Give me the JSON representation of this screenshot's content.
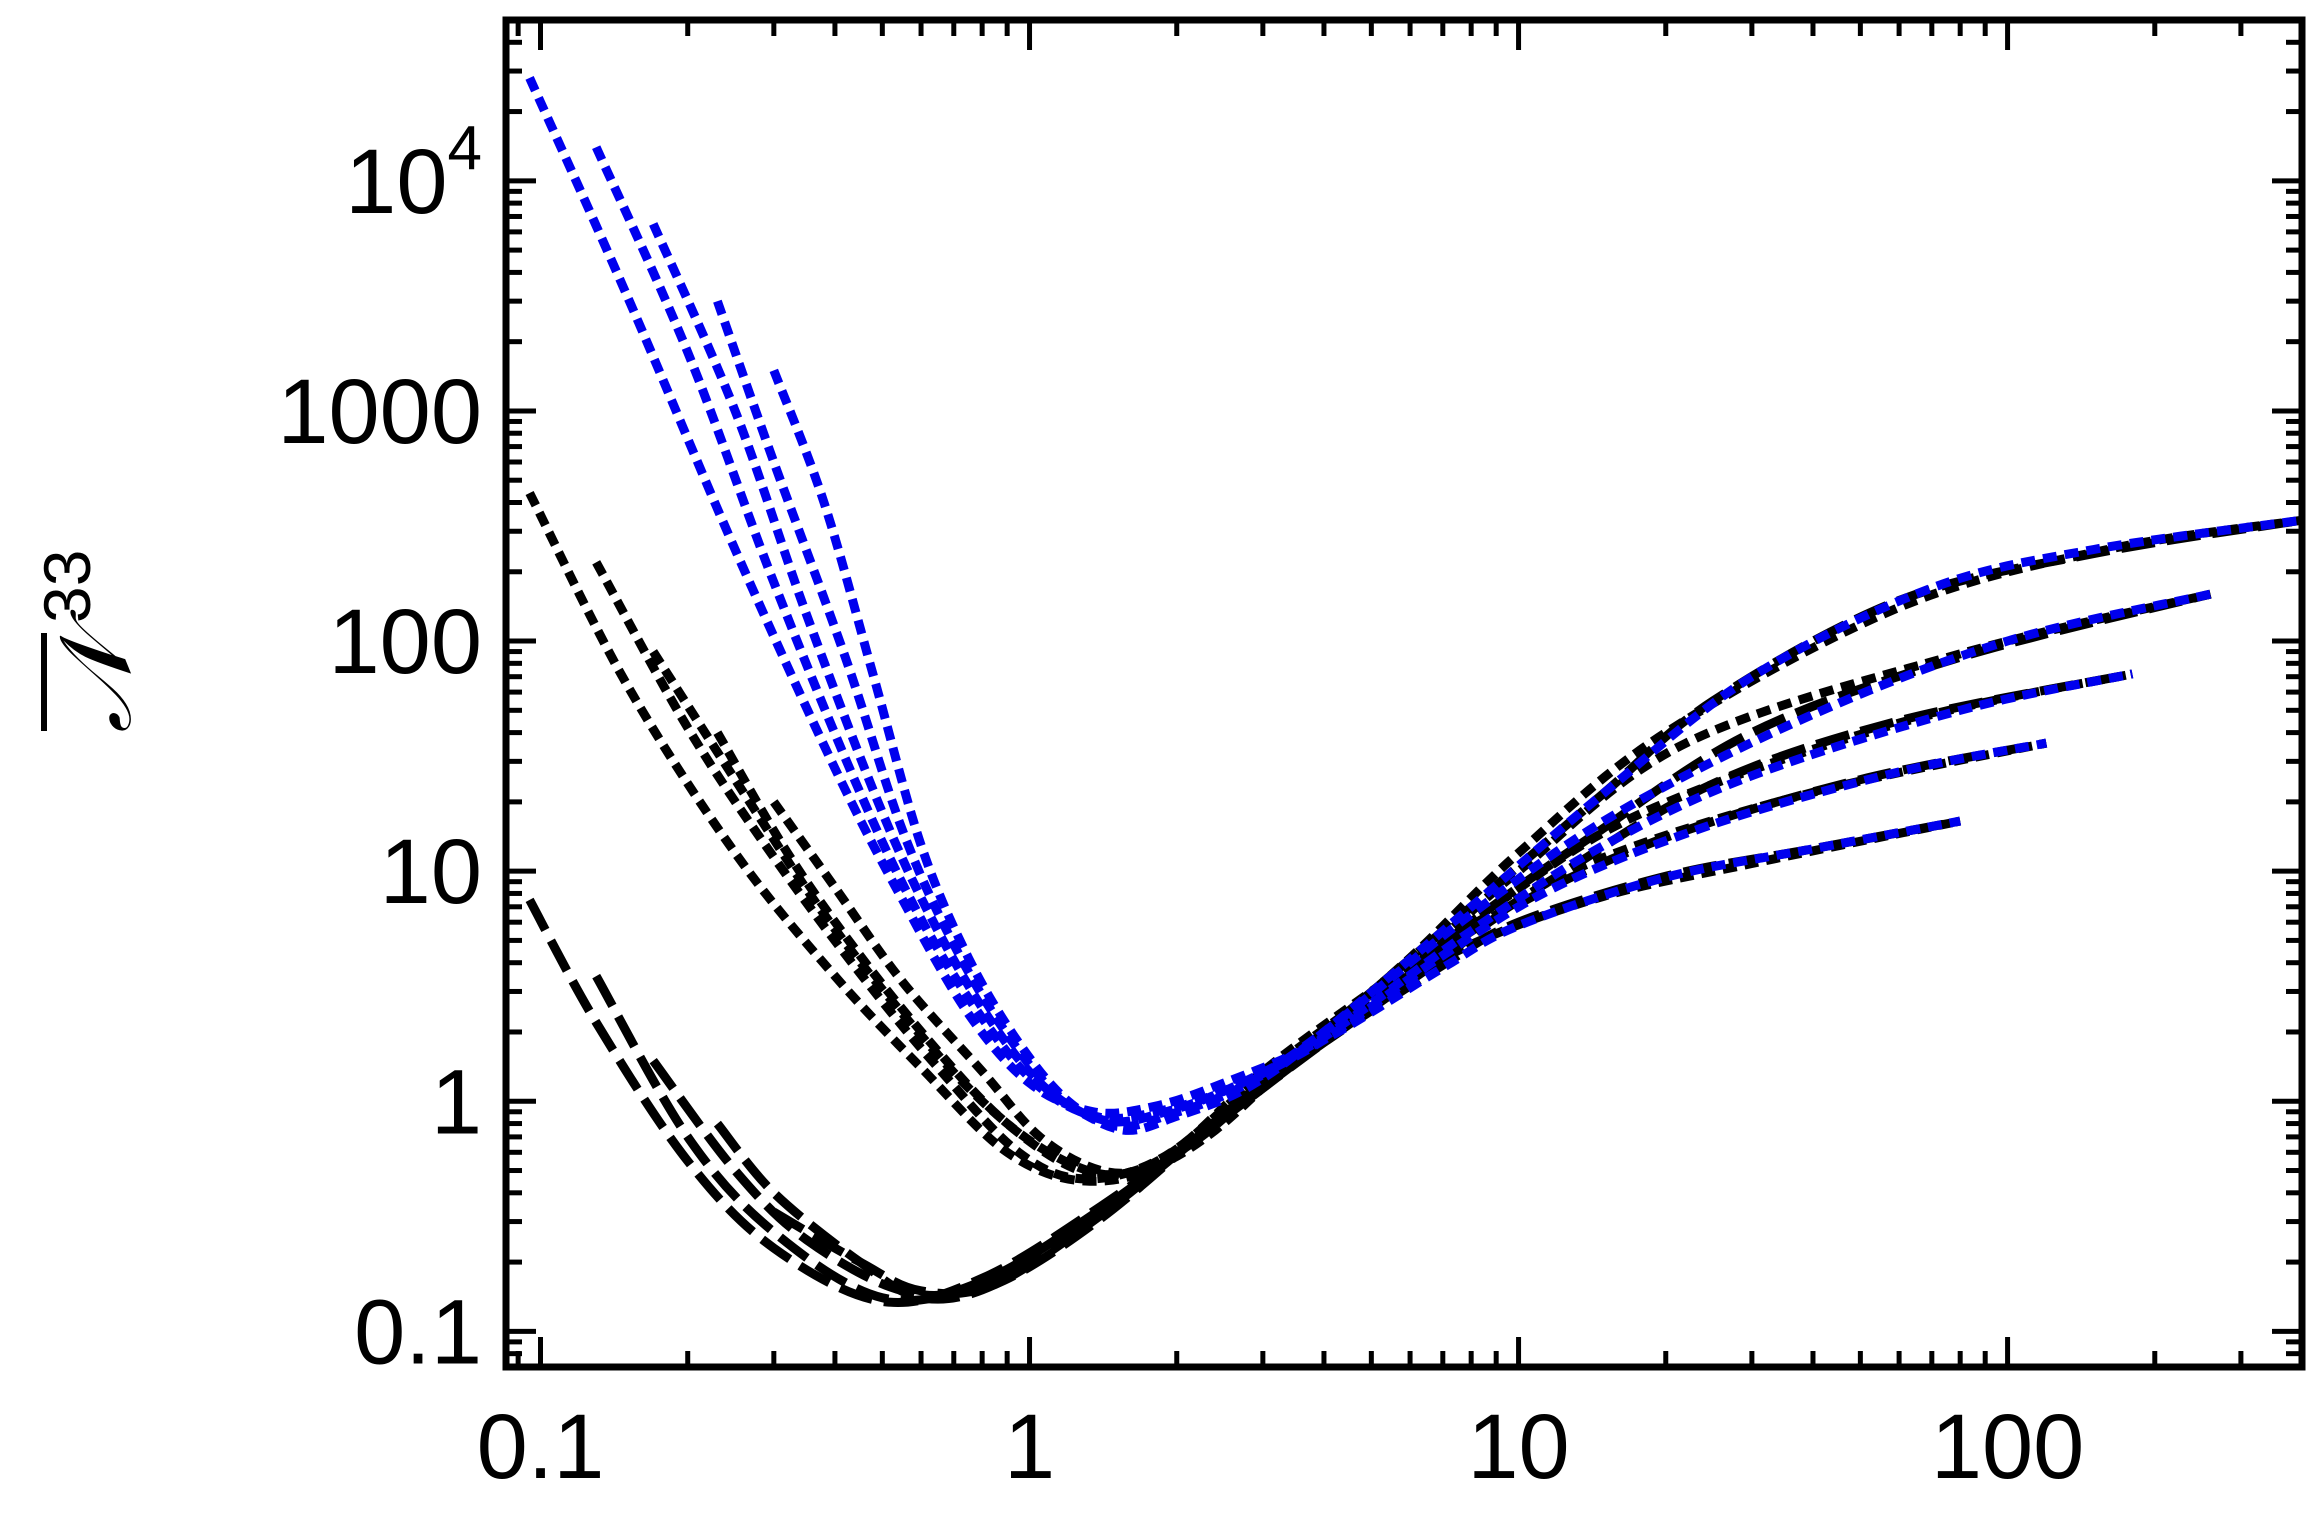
{
  "chart_data": {
    "type": "line",
    "title": "",
    "xlabel": "",
    "ylabel": "𝒩",
    "ylabel_overbar": true,
    "ylabel_superscript": "33",
    "x_scale": "log",
    "y_scale": "log",
    "xlim": [
      0.085,
      400
    ],
    "ylim": [
      0.07,
      50000
    ],
    "x_ticks": [
      {
        "value": 0.1,
        "label": "0.1"
      },
      {
        "value": 1,
        "label": "1"
      },
      {
        "value": 10,
        "label": "10"
      },
      {
        "value": 100,
        "label": "100"
      }
    ],
    "y_ticks": [
      {
        "value": 0.1,
        "label": "0.1"
      },
      {
        "value": 1,
        "label": "1"
      },
      {
        "value": 10,
        "label": "10"
      },
      {
        "value": 100,
        "label": "100"
      },
      {
        "value": 1000,
        "label": "1000"
      },
      {
        "value": 10000,
        "label": "10",
        "sup": "4"
      }
    ],
    "grid": false,
    "legend": "none",
    "colors": {
      "blue": "#0000ee",
      "black": "#000000"
    },
    "series": [
      {
        "color": "#000000",
        "style": "dash",
        "points": [
          [
            0.095,
            7.5
          ],
          [
            0.13,
            2.2
          ],
          [
            0.2,
            0.55
          ],
          [
            0.3,
            0.23
          ],
          [
            0.5,
            0.135
          ],
          [
            0.8,
            0.17
          ],
          [
            1.4,
            0.35
          ],
          [
            2.5,
            0.85
          ],
          [
            4,
            1.8
          ],
          [
            7,
            3.9
          ],
          [
            10,
            6.0
          ],
          [
            20,
            9.5
          ],
          [
            40,
            12.5
          ],
          [
            80,
            16.5
          ]
        ]
      },
      {
        "color": "#000000",
        "style": "dash",
        "points": [
          [
            0.13,
            3.5
          ],
          [
            0.2,
            0.7
          ],
          [
            0.3,
            0.27
          ],
          [
            0.5,
            0.14
          ],
          [
            0.8,
            0.165
          ],
          [
            1.4,
            0.34
          ],
          [
            2.5,
            0.85
          ],
          [
            4,
            1.8
          ],
          [
            7,
            4.2
          ],
          [
            10,
            7.2
          ],
          [
            20,
            14
          ],
          [
            50,
            25
          ],
          [
            120,
            36
          ]
        ]
      },
      {
        "color": "#000000",
        "style": "dash",
        "points": [
          [
            0.17,
            1.5
          ],
          [
            0.25,
            0.5
          ],
          [
            0.35,
            0.25
          ],
          [
            0.55,
            0.15
          ],
          [
            0.8,
            0.16
          ],
          [
            1.4,
            0.33
          ],
          [
            2.5,
            0.86
          ],
          [
            4,
            1.85
          ],
          [
            7,
            4.5
          ],
          [
            12,
            9.5
          ],
          [
            25,
            24
          ],
          [
            60,
            45
          ],
          [
            180,
            72
          ]
        ]
      },
      {
        "color": "#000000",
        "style": "dash",
        "points": [
          [
            0.23,
            0.8
          ],
          [
            0.3,
            0.4
          ],
          [
            0.45,
            0.2
          ],
          [
            0.6,
            0.14
          ],
          [
            0.85,
            0.16
          ],
          [
            1.4,
            0.32
          ],
          [
            2.5,
            0.87
          ],
          [
            4,
            1.9
          ],
          [
            8,
            6
          ],
          [
            14,
            14
          ],
          [
            30,
            40
          ],
          [
            80,
            85
          ],
          [
            260,
            160
          ]
        ]
      },
      {
        "color": "#000000",
        "style": "dash",
        "points": [
          [
            0.3,
            0.33
          ],
          [
            0.45,
            0.2
          ],
          [
            0.6,
            0.15
          ],
          [
            0.85,
            0.16
          ],
          [
            1.4,
            0.31
          ],
          [
            2.5,
            0.88
          ],
          [
            4,
            2.0
          ],
          [
            8,
            7
          ],
          [
            15,
            22
          ],
          [
            25,
            55
          ],
          [
            60,
            150
          ],
          [
            150,
            240
          ],
          [
            400,
            335
          ]
        ]
      },
      {
        "color": "#000000",
        "style": "dot",
        "points": [
          [
            0.095,
            440
          ],
          [
            0.15,
            65
          ],
          [
            0.25,
            12
          ],
          [
            0.4,
            3.5
          ],
          [
            0.6,
            1.4
          ],
          [
            0.9,
            0.6
          ],
          [
            1.3,
            0.45
          ],
          [
            1.9,
            0.55
          ],
          [
            3,
            1.25
          ],
          [
            5,
            2.7
          ],
          [
            8,
            4.8
          ],
          [
            15,
            7.8
          ],
          [
            30,
            10.8
          ],
          [
            80,
            16.5
          ]
        ]
      },
      {
        "color": "#000000",
        "style": "dot",
        "points": [
          [
            0.13,
            220
          ],
          [
            0.2,
            42
          ],
          [
            0.3,
            11.5
          ],
          [
            0.45,
            3.6
          ],
          [
            0.65,
            1.4
          ],
          [
            0.95,
            0.6
          ],
          [
            1.3,
            0.46
          ],
          [
            1.9,
            0.58
          ],
          [
            3,
            1.3
          ],
          [
            5,
            2.9
          ],
          [
            8,
            5.8
          ],
          [
            15,
            11.5
          ],
          [
            40,
            22
          ],
          [
            120,
            36
          ]
        ]
      },
      {
        "color": "#000000",
        "style": "dot",
        "points": [
          [
            0.17,
            90
          ],
          [
            0.26,
            22
          ],
          [
            0.38,
            6.5
          ],
          [
            0.55,
            2.4
          ],
          [
            0.8,
            1.0
          ],
          [
            1.15,
            0.55
          ],
          [
            1.5,
            0.48
          ],
          [
            2,
            0.62
          ],
          [
            3,
            1.35
          ],
          [
            5,
            3.0
          ],
          [
            9,
            7.2
          ],
          [
            18,
            18
          ],
          [
            60,
            44
          ],
          [
            180,
            72
          ]
        ]
      },
      {
        "color": "#000000",
        "style": "dot",
        "points": [
          [
            0.23,
            40
          ],
          [
            0.32,
            12
          ],
          [
            0.45,
            4.3
          ],
          [
            0.65,
            1.65
          ],
          [
            0.9,
            0.8
          ],
          [
            1.25,
            0.52
          ],
          [
            1.6,
            0.49
          ],
          [
            2.2,
            0.68
          ],
          [
            3.5,
            1.6
          ],
          [
            6,
            3.9
          ],
          [
            10,
            10
          ],
          [
            22,
            36
          ],
          [
            80,
            88
          ],
          [
            260,
            160
          ]
        ]
      },
      {
        "color": "#000000",
        "style": "dot",
        "points": [
          [
            0.3,
            20
          ],
          [
            0.4,
            8.5
          ],
          [
            0.55,
            3.3
          ],
          [
            0.8,
            1.35
          ],
          [
            1.05,
            0.7
          ],
          [
            1.4,
            0.5
          ],
          [
            1.8,
            0.52
          ],
          [
            2.4,
            0.75
          ],
          [
            3.5,
            1.55
          ],
          [
            6,
            4.2
          ],
          [
            10,
            12
          ],
          [
            20,
            40
          ],
          [
            60,
            140
          ],
          [
            160,
            250
          ],
          [
            400,
            335
          ]
        ]
      },
      {
        "color": "#0000ee",
        "style": "dot",
        "points": [
          [
            0.095,
            28000
          ],
          [
            0.15,
            3200
          ],
          [
            0.25,
            250
          ],
          [
            0.4,
            28
          ],
          [
            0.55,
            7.5
          ],
          [
            0.75,
            2.4
          ],
          [
            1.0,
            1.2
          ],
          [
            1.35,
            0.9
          ],
          [
            1.8,
            0.95
          ],
          [
            2.5,
            1.2
          ],
          [
            4,
            1.85
          ],
          [
            7,
            3.8
          ],
          [
            10,
            5.8
          ],
          [
            20,
            9.4
          ],
          [
            40,
            12.5
          ],
          [
            80,
            16.5
          ]
        ]
      },
      {
        "color": "#0000ee",
        "style": "dot",
        "points": [
          [
            0.13,
            14000
          ],
          [
            0.2,
            1800
          ],
          [
            0.3,
            180
          ],
          [
            0.45,
            22
          ],
          [
            0.6,
            6.2
          ],
          [
            0.8,
            2.3
          ],
          [
            1.05,
            1.15
          ],
          [
            1.4,
            0.85
          ],
          [
            1.9,
            0.92
          ],
          [
            2.6,
            1.15
          ],
          [
            4,
            1.85
          ],
          [
            7,
            4.3
          ],
          [
            12,
            8.6
          ],
          [
            25,
            16
          ],
          [
            60,
            27
          ],
          [
            120,
            36
          ]
        ]
      },
      {
        "color": "#0000ee",
        "style": "dot",
        "points": [
          [
            0.17,
            6500
          ],
          [
            0.25,
            1000
          ],
          [
            0.35,
            130
          ],
          [
            0.5,
            18
          ],
          [
            0.65,
            5.5
          ],
          [
            0.85,
            2.1
          ],
          [
            1.1,
            1.1
          ],
          [
            1.45,
            0.82
          ],
          [
            1.9,
            0.9
          ],
          [
            2.6,
            1.15
          ],
          [
            4,
            1.9
          ],
          [
            8,
            5.5
          ],
          [
            15,
            13
          ],
          [
            30,
            26
          ],
          [
            80,
            50
          ],
          [
            180,
            72
          ]
        ]
      },
      {
        "color": "#0000ee",
        "style": "dot",
        "points": [
          [
            0.23,
            3000
          ],
          [
            0.3,
            600
          ],
          [
            0.42,
            85
          ],
          [
            0.55,
            15
          ],
          [
            0.7,
            4.8
          ],
          [
            0.9,
            1.95
          ],
          [
            1.15,
            1.05
          ],
          [
            1.5,
            0.78
          ],
          [
            1.95,
            0.88
          ],
          [
            2.7,
            1.15
          ],
          [
            4,
            2.0
          ],
          [
            8,
            6.5
          ],
          [
            16,
            18
          ],
          [
            40,
            48
          ],
          [
            100,
            100
          ],
          [
            260,
            160
          ]
        ]
      },
      {
        "color": "#0000ee",
        "style": "dot",
        "points": [
          [
            0.3,
            1500
          ],
          [
            0.38,
            400
          ],
          [
            0.48,
            70
          ],
          [
            0.6,
            13
          ],
          [
            0.75,
            4.2
          ],
          [
            0.95,
            1.8
          ],
          [
            1.2,
            1.0
          ],
          [
            1.55,
            0.75
          ],
          [
            2.0,
            0.86
          ],
          [
            2.8,
            1.15
          ],
          [
            4,
            2.0
          ],
          [
            8,
            7
          ],
          [
            15,
            22
          ],
          [
            30,
            70
          ],
          [
            70,
            170
          ],
          [
            150,
            250
          ],
          [
            400,
            335
          ]
        ]
      }
    ]
  }
}
